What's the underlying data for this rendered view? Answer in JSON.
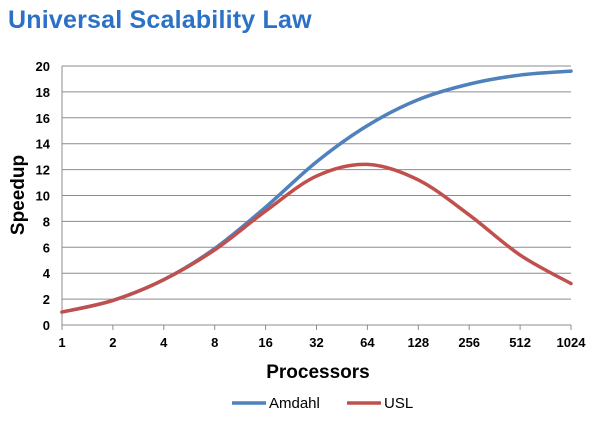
{
  "chart_data": {
    "type": "line",
    "title": "Universal Scalability Law",
    "xlabel": "Processors",
    "ylabel": "Speedup",
    "x": [
      1,
      2,
      4,
      8,
      16,
      32,
      64,
      128,
      256,
      512,
      1024
    ],
    "x_scale": "log2",
    "ylim": [
      0,
      20
    ],
    "yticks": [
      0,
      2,
      4,
      6,
      8,
      10,
      12,
      14,
      16,
      18,
      20
    ],
    "grid": true,
    "legend": "bottom",
    "series": [
      {
        "name": "Amdahl",
        "color": "#4f81bd",
        "values": [
          1.0,
          1.9,
          3.5,
          5.9,
          9.1,
          12.6,
          15.4,
          17.4,
          18.6,
          19.3,
          19.6
        ]
      },
      {
        "name": "USL",
        "color": "#c0504d",
        "values": [
          1.0,
          1.9,
          3.5,
          5.8,
          8.8,
          11.5,
          12.4,
          11.2,
          8.5,
          5.4,
          3.2
        ]
      }
    ]
  }
}
